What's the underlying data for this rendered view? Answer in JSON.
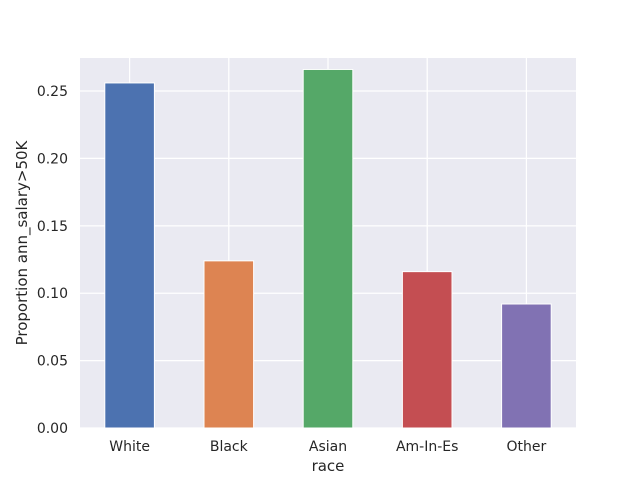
{
  "chart_data": {
    "type": "bar",
    "categories": [
      "White",
      "Black",
      "Asian",
      "Am-In-Es",
      "Other"
    ],
    "values": [
      0.256,
      0.124,
      0.266,
      0.116,
      0.092
    ],
    "colors": [
      "#4c72b0",
      "#dd8452",
      "#55a868",
      "#c44e52",
      "#8172b3"
    ],
    "xlabel": "race",
    "ylabel": "Proportion ann_salary>50K",
    "ylim": [
      0,
      0.2745
    ],
    "yticks": [
      "0.00",
      "0.05",
      "0.10",
      "0.15",
      "0.20",
      "0.25"
    ],
    "grid": true,
    "background": "#eaeaf2"
  }
}
